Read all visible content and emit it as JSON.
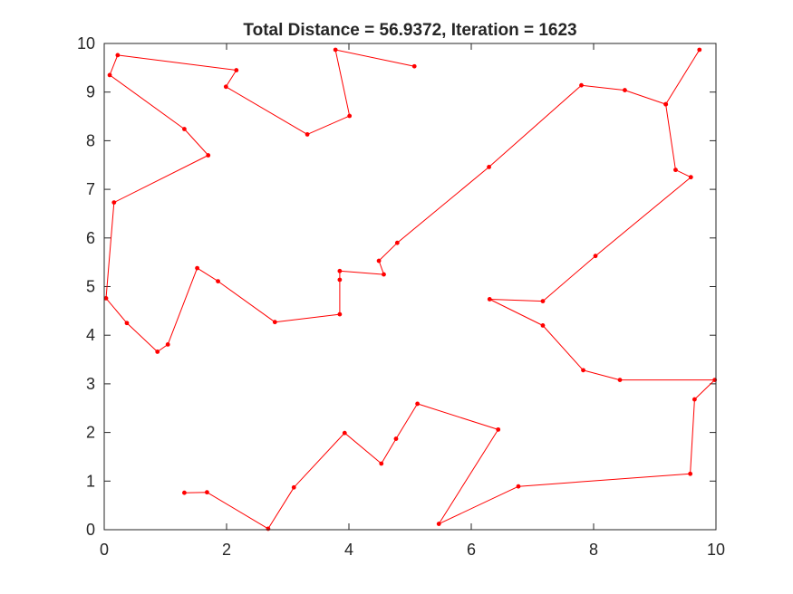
{
  "chart_data": {
    "type": "line",
    "title": "Total Distance = 56.9372, Iteration = 1623",
    "xlabel": "",
    "ylabel": "",
    "xlim": [
      0,
      10
    ],
    "ylim": [
      0,
      10
    ],
    "xticks": [
      "0",
      "2",
      "4",
      "6",
      "8",
      "10"
    ],
    "yticks": [
      "0",
      "1",
      "2",
      "3",
      "4",
      "5",
      "6",
      "7",
      "8",
      "9",
      "10"
    ],
    "grid": false,
    "legend": "none",
    "series": [
      {
        "color": "#ff0000",
        "marker": "dot",
        "points": [
          [
            5.07,
            9.53
          ],
          [
            3.78,
            9.87
          ],
          [
            4.01,
            8.51
          ],
          [
            3.32,
            8.13
          ],
          [
            1.99,
            9.11
          ],
          [
            2.16,
            9.45
          ],
          [
            0.22,
            9.76
          ],
          [
            0.09,
            9.35
          ],
          [
            1.31,
            8.24
          ],
          [
            1.7,
            7.7
          ],
          [
            0.16,
            6.73
          ],
          [
            0.03,
            4.76
          ],
          [
            0.37,
            4.25
          ],
          [
            0.87,
            3.66
          ],
          [
            1.04,
            3.81
          ],
          [
            1.52,
            5.38
          ],
          [
            1.86,
            5.11
          ],
          [
            2.79,
            4.27
          ],
          [
            3.85,
            4.43
          ],
          [
            3.85,
            5.14
          ],
          [
            3.85,
            5.32
          ],
          [
            4.57,
            5.25
          ],
          [
            4.49,
            5.53
          ],
          [
            4.79,
            5.9
          ],
          [
            6.29,
            7.46
          ],
          [
            7.8,
            9.14
          ],
          [
            8.51,
            9.04
          ],
          [
            9.18,
            8.75
          ],
          [
            9.34,
            7.4
          ],
          [
            9.59,
            7.25
          ],
          [
            8.03,
            5.63
          ],
          [
            7.17,
            4.7
          ],
          [
            6.3,
            4.74
          ],
          [
            7.17,
            4.2
          ],
          [
            7.83,
            3.28
          ],
          [
            8.43,
            3.08
          ],
          [
            9.98,
            3.08
          ],
          [
            9.65,
            2.68
          ],
          [
            9.58,
            1.15
          ],
          [
            6.77,
            0.89
          ],
          [
            5.47,
            0.12
          ],
          [
            6.44,
            2.06
          ],
          [
            5.12,
            2.59
          ],
          [
            4.77,
            1.87
          ],
          [
            4.53,
            1.36
          ],
          [
            3.93,
            1.99
          ],
          [
            3.1,
            0.87
          ],
          [
            2.68,
            0.02
          ],
          [
            1.68,
            0.77
          ],
          [
            1.31,
            0.76
          ]
        ]
      },
      {
        "color": "#ff0000",
        "marker": "dot",
        "points": [
          [
            9.73,
            9.87
          ],
          [
            9.18,
            8.75
          ]
        ]
      }
    ]
  }
}
